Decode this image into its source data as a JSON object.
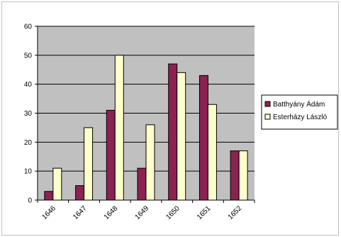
{
  "chart_data": {
    "type": "bar",
    "categories": [
      "1646",
      "1647",
      "1648",
      "1649",
      "1650",
      "1651",
      "1652"
    ],
    "series": [
      {
        "name": "Batthyány Ádám",
        "values": [
          3,
          5,
          31,
          11,
          47,
          43,
          17
        ],
        "color": "#8b2252"
      },
      {
        "name": "Esterházy László",
        "values": [
          11,
          25,
          50,
          26,
          44,
          33,
          17
        ],
        "color": "#ffffcc"
      }
    ],
    "ylim": [
      0,
      60
    ],
    "yticks": [
      0,
      10,
      20,
      30,
      40,
      50,
      60
    ],
    "grid": true,
    "legend": "right",
    "plot_background": "#c0c0c0"
  }
}
